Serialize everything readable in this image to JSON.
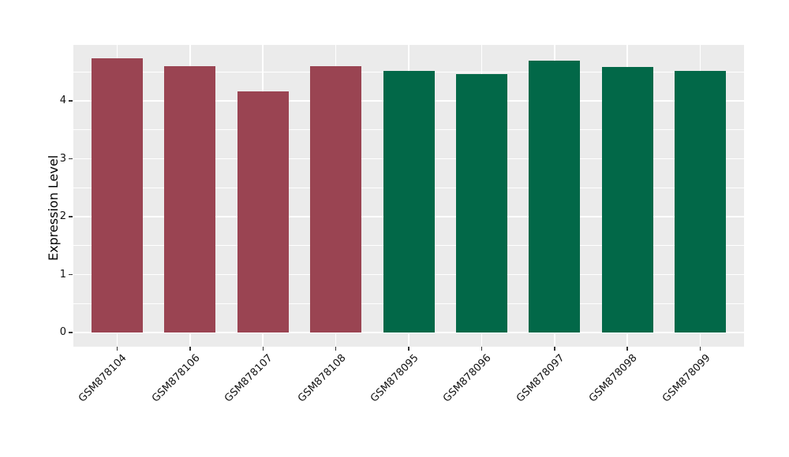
{
  "figure": {
    "background": "#FFFFFF",
    "panel_background": "#EBEBEB",
    "gridline_color": "#FFFFFF",
    "tick_mark_color": "#333333",
    "text_color": "#111111"
  },
  "chart_data": {
    "type": "bar",
    "title": "",
    "xlabel": "",
    "ylabel": "Expression Level",
    "categories": [
      "GSM878104",
      "GSM878106",
      "GSM878107",
      "GSM878108",
      "GSM878095",
      "GSM878096",
      "GSM878097",
      "GSM878098",
      "GSM878099"
    ],
    "values": [
      4.73,
      4.6,
      4.16,
      4.6,
      4.52,
      4.47,
      4.7,
      4.59,
      4.52
    ],
    "bar_colors": [
      "#9A4452",
      "#9A4452",
      "#9A4452",
      "#9A4452",
      "#026848",
      "#026848",
      "#026848",
      "#026848",
      "#026848"
    ],
    "group_colors": {
      "maroon": "#9A4452",
      "green": "#026848"
    },
    "yticks": [
      0,
      1,
      2,
      3,
      4
    ],
    "yticks_minor": [
      0.5,
      1.5,
      2.5,
      3.5,
      4.5
    ],
    "ylim": [
      0,
      4.99
    ],
    "grid": {
      "major": true,
      "minor": true,
      "vertical_at_categories": true
    },
    "legend": null,
    "x_tick_rotation_deg": 45
  }
}
